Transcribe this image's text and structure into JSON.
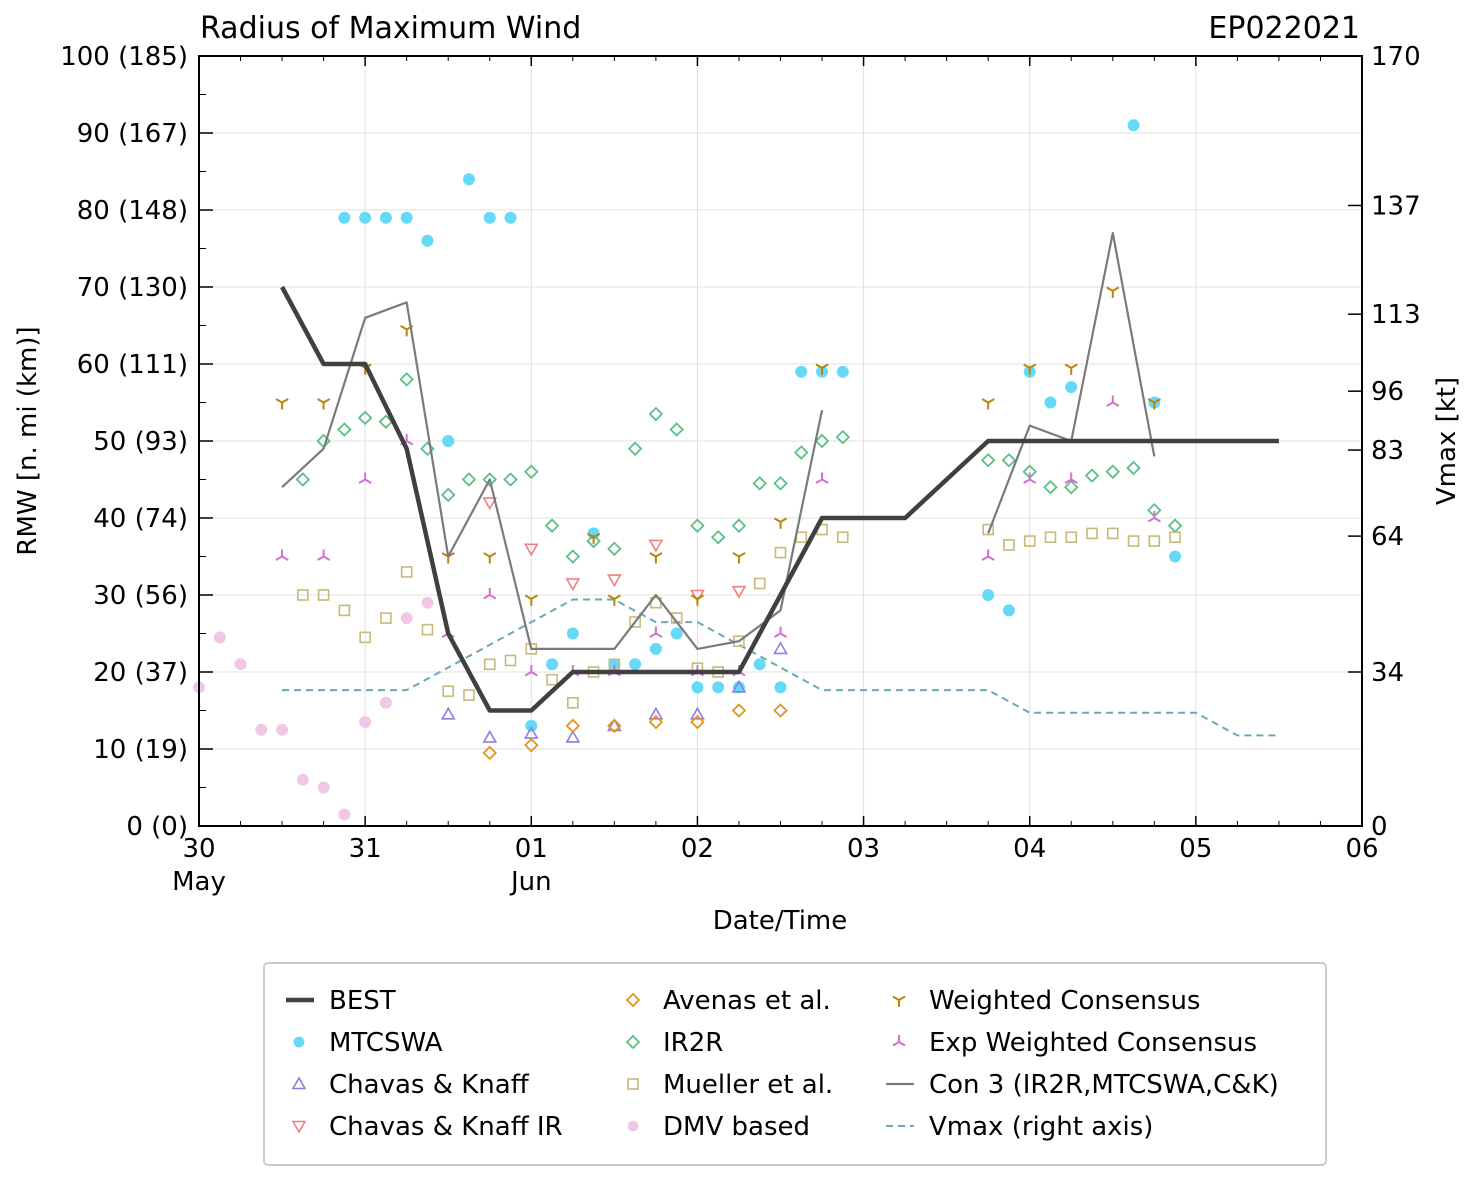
{
  "chart_data": {
    "type": "scatter",
    "title": "Radius of Maximum Wind",
    "storm_id": "EP022021",
    "xlabel": "Date/Time",
    "ylabel": "RMW [n. mi (km)]",
    "y2label": "Vmax [kt]",
    "xlim_days": [
      0,
      7
    ],
    "ylim": [
      0,
      100
    ],
    "y2lim": [
      0,
      170
    ],
    "x_ticks": [
      {
        "day": 0,
        "label": "30",
        "sublabel": "May"
      },
      {
        "day": 1,
        "label": "31",
        "sublabel": ""
      },
      {
        "day": 2,
        "label": "01",
        "sublabel": "Jun"
      },
      {
        "day": 3,
        "label": "02",
        "sublabel": ""
      },
      {
        "day": 4,
        "label": "03",
        "sublabel": ""
      },
      {
        "day": 5,
        "label": "04",
        "sublabel": ""
      },
      {
        "day": 6,
        "label": "05",
        "sublabel": ""
      },
      {
        "day": 7,
        "label": "06",
        "sublabel": ""
      }
    ],
    "y_ticks": [
      {
        "value": 0,
        "label": "0 (0)"
      },
      {
        "value": 10,
        "label": "10 (19)"
      },
      {
        "value": 20,
        "label": "20 (37)"
      },
      {
        "value": 30,
        "label": "30 (56)"
      },
      {
        "value": 40,
        "label": "40 (74)"
      },
      {
        "value": 50,
        "label": "50 (93)"
      },
      {
        "value": 60,
        "label": "60 (111)"
      },
      {
        "value": 70,
        "label": "70 (130)"
      },
      {
        "value": 80,
        "label": "80 (148)"
      },
      {
        "value": 90,
        "label": "90 (167)"
      },
      {
        "value": 100,
        "label": "100 (185)"
      }
    ],
    "y2_ticks": [
      {
        "value": 0,
        "label": "0"
      },
      {
        "value": 34,
        "label": "34"
      },
      {
        "value": 64,
        "label": "64"
      },
      {
        "value": 83,
        "label": "83"
      },
      {
        "value": 96,
        "label": "96"
      },
      {
        "value": 113,
        "label": "113"
      },
      {
        "value": 137,
        "label": "137"
      },
      {
        "value": 170,
        "label": "170"
      }
    ],
    "series": [
      {
        "name": "BEST",
        "kind": "line",
        "style": "best",
        "color": "#404040",
        "points": [
          [
            0.5,
            70
          ],
          [
            0.75,
            60
          ],
          [
            1.0,
            60
          ],
          [
            1.25,
            49
          ],
          [
            1.5,
            25
          ],
          [
            1.75,
            15
          ],
          [
            2.0,
            15
          ],
          [
            2.25,
            20
          ],
          [
            2.5,
            20
          ],
          [
            2.75,
            20
          ],
          [
            3.0,
            20
          ],
          [
            3.25,
            20
          ],
          [
            3.5,
            30
          ],
          [
            3.75,
            40
          ],
          [
            4.0,
            40
          ],
          [
            4.25,
            40
          ],
          [
            4.5,
            45
          ],
          [
            4.75,
            50
          ],
          [
            5.0,
            50
          ],
          [
            5.25,
            50
          ],
          [
            5.5,
            50
          ],
          [
            5.75,
            50
          ],
          [
            6.0,
            50
          ],
          [
            6.25,
            50
          ],
          [
            6.5,
            50
          ]
        ]
      },
      {
        "name": "MTCSWA",
        "kind": "marker",
        "marker": "circle",
        "color": "#66d9f7",
        "points": [
          [
            0.875,
            79
          ],
          [
            1.0,
            79
          ],
          [
            1.125,
            79
          ],
          [
            1.25,
            79
          ],
          [
            1.375,
            76
          ],
          [
            1.5,
            50
          ],
          [
            1.625,
            84
          ],
          [
            1.75,
            79
          ],
          [
            1.875,
            79
          ],
          [
            2.0,
            13
          ],
          [
            2.125,
            21
          ],
          [
            2.25,
            25
          ],
          [
            2.375,
            38
          ],
          [
            2.5,
            21
          ],
          [
            2.625,
            21
          ],
          [
            2.75,
            23
          ],
          [
            2.875,
            25
          ],
          [
            3.0,
            18
          ],
          [
            3.125,
            18
          ],
          [
            3.25,
            18
          ],
          [
            3.375,
            21
          ],
          [
            3.5,
            18
          ],
          [
            3.625,
            59
          ],
          [
            3.75,
            59
          ],
          [
            3.875,
            59
          ],
          [
            4.75,
            30
          ],
          [
            4.875,
            28
          ],
          [
            5.0,
            59
          ],
          [
            5.125,
            55
          ],
          [
            5.25,
            57
          ],
          [
            5.625,
            91
          ],
          [
            5.75,
            55
          ],
          [
            5.875,
            35
          ]
        ]
      },
      {
        "name": "Chavas & Knaff",
        "kind": "marker",
        "marker": "triangle-up",
        "color": "#8b7fe0",
        "points": [
          [
            1.5,
            14.5
          ],
          [
            1.75,
            11.5
          ],
          [
            2.0,
            12
          ],
          [
            2.25,
            11.5
          ],
          [
            2.5,
            13
          ],
          [
            2.75,
            14.5
          ],
          [
            3.0,
            14.5
          ],
          [
            3.25,
            18
          ],
          [
            3.5,
            23
          ]
        ]
      },
      {
        "name": "Chavas & Knaff IR",
        "kind": "marker",
        "marker": "triangle-down",
        "color": "#f08080",
        "points": [
          [
            1.75,
            42
          ],
          [
            2.0,
            36
          ],
          [
            2.25,
            31.5
          ],
          [
            2.5,
            32
          ],
          [
            2.75,
            36.5
          ],
          [
            3.0,
            30
          ],
          [
            3.25,
            30.5
          ]
        ]
      },
      {
        "name": "DMV based",
        "kind": "marker",
        "marker": "circle",
        "color": "#f0c8e6",
        "points": [
          [
            0.0,
            18
          ],
          [
            0.125,
            24.5
          ],
          [
            0.25,
            21
          ],
          [
            0.375,
            12.5
          ],
          [
            0.5,
            12.5
          ],
          [
            0.625,
            6
          ],
          [
            0.75,
            5
          ],
          [
            0.875,
            1.5
          ],
          [
            1.0,
            13.5
          ],
          [
            1.125,
            16
          ],
          [
            1.25,
            27
          ],
          [
            1.375,
            29
          ]
        ]
      },
      {
        "name": "Avenas et al.",
        "kind": "marker",
        "marker": "diamond",
        "color": "#e6931e",
        "points": [
          [
            1.75,
            9.5
          ],
          [
            2.0,
            10.5
          ],
          [
            2.25,
            13
          ],
          [
            2.5,
            13
          ],
          [
            2.75,
            13.5
          ],
          [
            3.0,
            13.5
          ],
          [
            3.25,
            15
          ],
          [
            3.5,
            15
          ]
        ]
      },
      {
        "name": "IR2R",
        "kind": "marker",
        "marker": "diamond",
        "color": "#5cbf86",
        "points": [
          [
            0.625,
            45
          ],
          [
            0.75,
            50
          ],
          [
            0.875,
            51.5
          ],
          [
            1.0,
            53
          ],
          [
            1.125,
            52.5
          ],
          [
            1.25,
            58
          ],
          [
            1.375,
            49
          ],
          [
            1.5,
            43
          ],
          [
            1.625,
            45
          ],
          [
            1.75,
            45
          ],
          [
            1.875,
            45
          ],
          [
            2.0,
            46
          ],
          [
            2.125,
            39
          ],
          [
            2.25,
            35
          ],
          [
            2.375,
            37
          ],
          [
            2.5,
            36
          ],
          [
            2.625,
            49
          ],
          [
            2.75,
            53.5
          ],
          [
            2.875,
            51.5
          ],
          [
            3.0,
            39
          ],
          [
            3.125,
            37.5
          ],
          [
            3.25,
            39
          ],
          [
            3.375,
            44.5
          ],
          [
            3.5,
            44.5
          ],
          [
            3.625,
            48.5
          ],
          [
            3.75,
            50
          ],
          [
            3.875,
            50.5
          ],
          [
            4.75,
            47.5
          ],
          [
            4.875,
            47.5
          ],
          [
            5.0,
            46
          ],
          [
            5.125,
            44
          ],
          [
            5.25,
            44
          ],
          [
            5.375,
            45.5
          ],
          [
            5.5,
            46
          ],
          [
            5.625,
            46.5
          ],
          [
            5.75,
            41
          ],
          [
            5.875,
            39
          ]
        ]
      },
      {
        "name": "Mueller et al.",
        "kind": "marker",
        "marker": "square",
        "color": "#c8b87a",
        "points": [
          [
            0.625,
            30
          ],
          [
            0.75,
            30
          ],
          [
            0.875,
            28
          ],
          [
            1.0,
            24.5
          ],
          [
            1.125,
            27
          ],
          [
            1.25,
            33
          ],
          [
            1.375,
            25.5
          ],
          [
            1.5,
            17.5
          ],
          [
            1.625,
            17
          ],
          [
            1.75,
            21
          ],
          [
            1.875,
            21.5
          ],
          [
            2.0,
            23
          ],
          [
            2.125,
            19
          ],
          [
            2.25,
            16
          ],
          [
            2.375,
            20
          ],
          [
            2.5,
            21
          ],
          [
            2.625,
            26.5
          ],
          [
            2.75,
            29
          ],
          [
            2.875,
            27
          ],
          [
            3.0,
            20.5
          ],
          [
            3.125,
            20
          ],
          [
            3.25,
            24
          ],
          [
            3.375,
            31.5
          ],
          [
            3.5,
            35.5
          ],
          [
            3.625,
            37.5
          ],
          [
            3.75,
            38.5
          ],
          [
            3.875,
            37.5
          ],
          [
            4.75,
            38.5
          ],
          [
            4.875,
            36.5
          ],
          [
            5.0,
            37
          ],
          [
            5.125,
            37.5
          ],
          [
            5.25,
            37.5
          ],
          [
            5.375,
            38
          ],
          [
            5.5,
            38
          ],
          [
            5.625,
            37
          ],
          [
            5.75,
            37
          ],
          [
            5.875,
            37.5
          ]
        ]
      },
      {
        "name": "Weighted Consensus",
        "kind": "marker",
        "marker": "tri-down",
        "color": "#b8860b",
        "points": [
          [
            0.5,
            55
          ],
          [
            0.75,
            55
          ],
          [
            1.0,
            59.5
          ],
          [
            1.25,
            64.5
          ],
          [
            1.5,
            35
          ],
          [
            1.75,
            35
          ],
          [
            2.0,
            29.5
          ],
          [
            2.375,
            37.5
          ],
          [
            2.5,
            29.5
          ],
          [
            2.75,
            35
          ],
          [
            3.0,
            29.5
          ],
          [
            3.25,
            35
          ],
          [
            3.5,
            39.5
          ],
          [
            3.75,
            59.5
          ],
          [
            4.75,
            55
          ],
          [
            5.0,
            59.5
          ],
          [
            5.25,
            59.5
          ],
          [
            5.5,
            69.5
          ],
          [
            5.75,
            55
          ]
        ]
      },
      {
        "name": "Exp Weighted Consensus",
        "kind": "marker",
        "marker": "tri-up",
        "color": "#d070d0",
        "points": [
          [
            0.5,
            35
          ],
          [
            0.75,
            35
          ],
          [
            1.0,
            45
          ],
          [
            1.25,
            50
          ],
          [
            1.5,
            25
          ],
          [
            1.75,
            30
          ],
          [
            2.0,
            20
          ],
          [
            2.25,
            20
          ],
          [
            2.5,
            20
          ],
          [
            2.75,
            25
          ],
          [
            3.0,
            20
          ],
          [
            3.25,
            20
          ],
          [
            3.5,
            25
          ],
          [
            3.75,
            45
          ],
          [
            4.75,
            35
          ],
          [
            5.0,
            45
          ],
          [
            5.25,
            45
          ],
          [
            5.5,
            55
          ],
          [
            5.75,
            40
          ]
        ]
      },
      {
        "name": "Con 3 (IR2R,MTCSWA,C&K)",
        "kind": "line",
        "style": "con3",
        "color": "#7a7a7a",
        "segments": [
          [
            [
              0.5,
              44
            ],
            [
              0.75,
              49
            ],
            [
              1.0,
              66
            ],
            [
              1.25,
              68
            ],
            [
              1.5,
              35
            ],
            [
              1.75,
              45
            ],
            [
              2.0,
              23
            ],
            [
              2.25,
              23
            ],
            [
              2.5,
              23
            ],
            [
              2.75,
              30
            ],
            [
              3.0,
              23
            ],
            [
              3.25,
              24
            ],
            [
              3.5,
              28
            ],
            [
              3.75,
              54
            ]
          ],
          [
            [
              4.75,
              38
            ],
            [
              5.0,
              52
            ],
            [
              5.25,
              50
            ],
            [
              5.5,
              77
            ],
            [
              5.75,
              48
            ]
          ]
        ]
      },
      {
        "name": "Vmax (right axis)",
        "kind": "line",
        "style": "vmax",
        "color": "#6aa8b8",
        "axis": "right",
        "points": [
          [
            0.5,
            30
          ],
          [
            0.75,
            30
          ],
          [
            1.0,
            30
          ],
          [
            1.25,
            30
          ],
          [
            1.5,
            35
          ],
          [
            1.75,
            40
          ],
          [
            2.0,
            45
          ],
          [
            2.25,
            50
          ],
          [
            2.5,
            50
          ],
          [
            2.75,
            45
          ],
          [
            3.0,
            45
          ],
          [
            3.25,
            40
          ],
          [
            3.5,
            35
          ],
          [
            3.75,
            30
          ],
          [
            4.0,
            30
          ],
          [
            4.25,
            30
          ],
          [
            4.5,
            30
          ],
          [
            4.75,
            30
          ],
          [
            5.0,
            25
          ],
          [
            5.25,
            25
          ],
          [
            5.5,
            25
          ],
          [
            5.75,
            25
          ],
          [
            6.0,
            25
          ],
          [
            6.25,
            20
          ],
          [
            6.5,
            20
          ]
        ]
      }
    ],
    "legend": {
      "placement": "bottom",
      "columns": [
        [
          "BEST",
          "MTCSWA",
          "Chavas & Knaff",
          "Chavas & Knaff IR"
        ],
        [
          "Avenas et al.",
          "IR2R",
          "Mueller et al.",
          "DMV based"
        ],
        [
          "Weighted Consensus",
          "Exp Weighted Consensus",
          "Con 3 (IR2R,MTCSWA,C&K)",
          "Vmax (right axis)"
        ]
      ]
    }
  }
}
